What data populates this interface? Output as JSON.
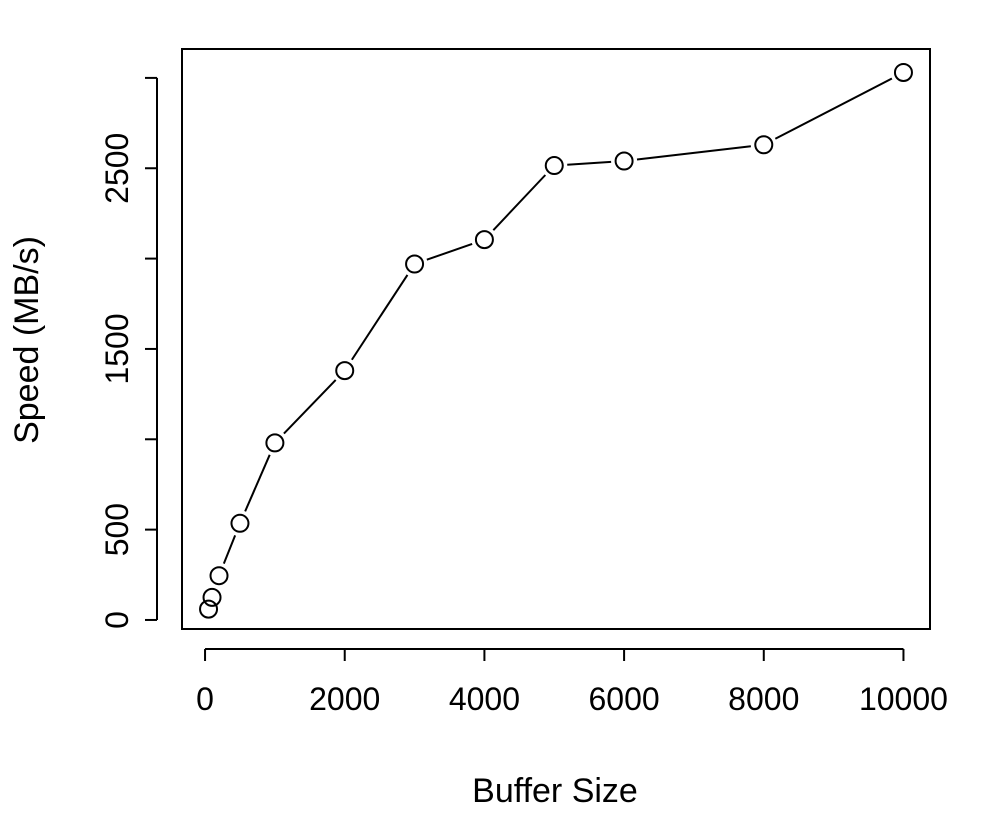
{
  "chart_data": {
    "type": "line",
    "title": "",
    "xlabel": "Buffer Size",
    "ylabel": "Speed (MB/s)",
    "xlim": [
      -330,
      10380
    ],
    "ylim": [
      -50,
      3160
    ],
    "x_ticks": [
      0,
      2000,
      4000,
      6000,
      8000,
      10000
    ],
    "y_ticks": [
      0,
      500,
      1000,
      1500,
      2000,
      2500,
      3000
    ],
    "y_tick_labels": [
      "0",
      "500",
      "",
      "1500",
      "",
      "2500",
      ""
    ],
    "grid": false,
    "series": [
      {
        "x": [
          50,
          100,
          200,
          500,
          1000,
          2000,
          3000,
          4000,
          5000,
          6000,
          8000,
          10000
        ],
        "y": [
          60,
          125,
          245,
          535,
          980,
          1380,
          1970,
          2105,
          2515,
          2540,
          2630,
          3030
        ]
      }
    ]
  }
}
